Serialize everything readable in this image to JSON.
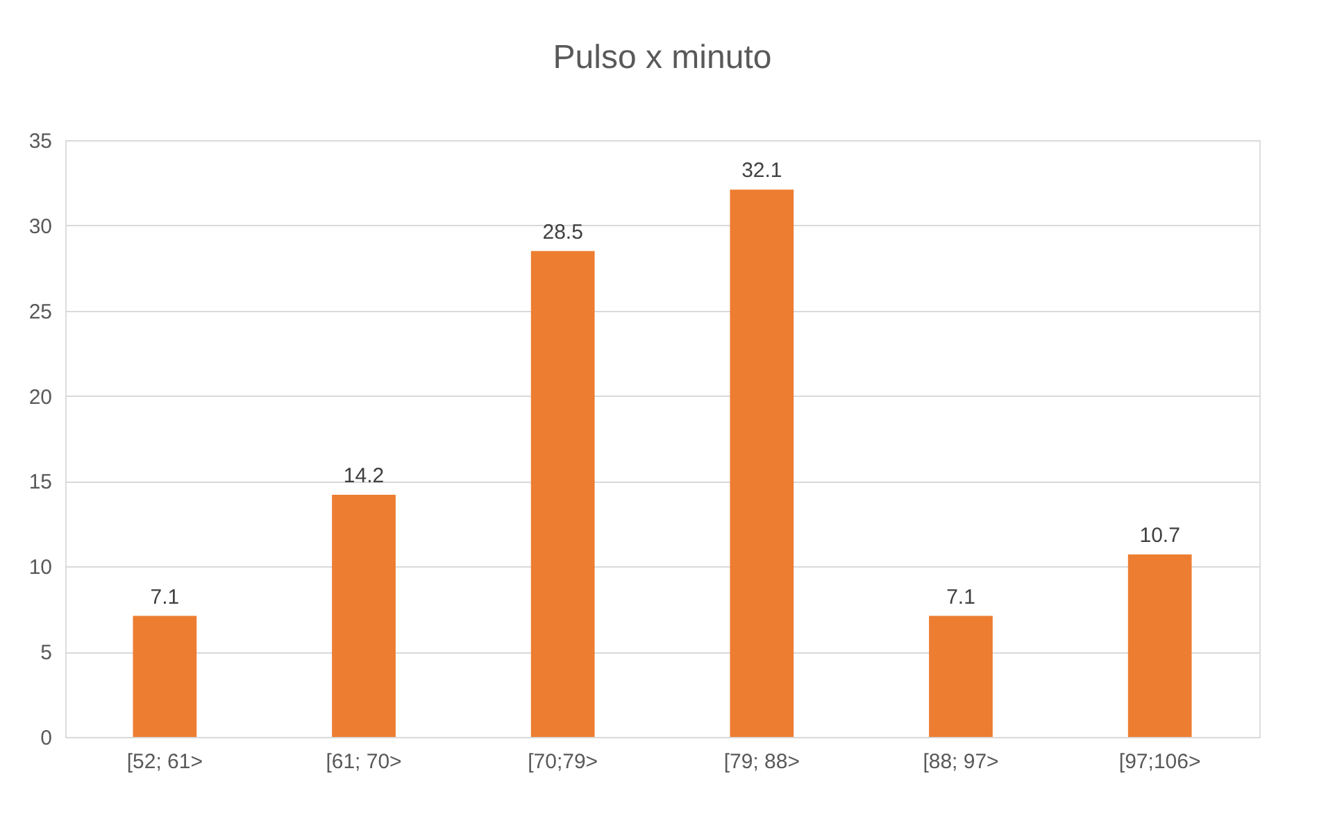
{
  "chart_data": {
    "type": "bar",
    "title": "Pulso x minuto",
    "categories": [
      "[52; 61>",
      "[61; 70>",
      "[70;79>",
      "[79; 88>",
      "[88; 97>",
      "[97;106>"
    ],
    "values": [
      7.1,
      14.2,
      28.5,
      32.1,
      7.1,
      10.7
    ],
    "color": "#ed7d31",
    "ylim": [
      0,
      35
    ],
    "yticks": [
      0,
      5,
      10,
      15,
      20,
      25,
      30,
      35
    ],
    "grid": "y",
    "data_labels": true
  }
}
